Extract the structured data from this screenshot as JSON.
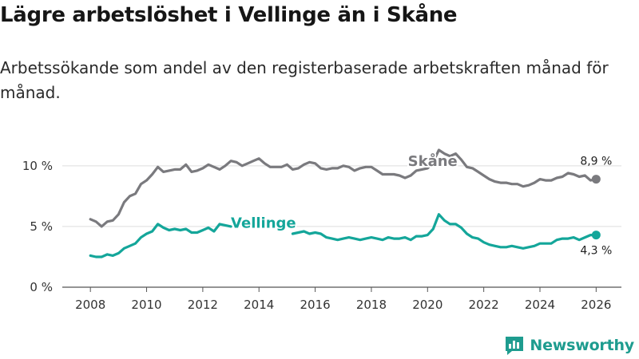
{
  "header": {
    "title": "Lägre arbetslöshet i Vellinge än i Skåne",
    "subtitle": "Arbetssökande som andel av den registerbaserade arbetskraften månad för månad."
  },
  "brand": {
    "name": "Newsworthy"
  },
  "colors": {
    "skane": "#7a7a7e",
    "vellinge": "#14a69a",
    "grid": "#dddddd",
    "axis": "#555555"
  },
  "chart_data": {
    "type": "line",
    "title": "Lägre arbetslöshet i Vellinge än i Skåne",
    "xlabel": "",
    "ylabel": "",
    "xlim": [
      2007,
      2026.9
    ],
    "ylim": [
      0,
      11.5
    ],
    "x_ticks": [
      2008,
      2010,
      2012,
      2014,
      2016,
      2018,
      2020,
      2022,
      2024,
      2026
    ],
    "x_tick_labels": [
      "2008",
      "2010",
      "2012",
      "2014",
      "2016",
      "2018",
      "2020",
      "2022",
      "2024",
      "2026"
    ],
    "y_ticks": [
      0,
      5,
      10
    ],
    "y_tick_labels": [
      "0 %",
      "5 %",
      "10 %"
    ],
    "series": [
      {
        "name": "Skåne",
        "label": "Skåne",
        "color": "#7a7a7e",
        "end_label": "8,9 %",
        "x": [
          2008.0,
          2008.2,
          2008.4,
          2008.6,
          2008.8,
          2009.0,
          2009.2,
          2009.4,
          2009.6,
          2009.8,
          2010.0,
          2010.2,
          2010.4,
          2010.6,
          2010.8,
          2011.0,
          2011.2,
          2011.4,
          2011.6,
          2011.8,
          2012.0,
          2012.2,
          2012.4,
          2012.6,
          2012.8,
          2013.0,
          2013.2,
          2013.4,
          2013.6,
          2013.8,
          2014.0,
          2014.2,
          2014.4,
          2014.6,
          2014.8,
          2015.0,
          2015.2,
          2015.4,
          2015.6,
          2015.8,
          2016.0,
          2016.2,
          2016.4,
          2016.6,
          2016.8,
          2017.0,
          2017.2,
          2017.4,
          2017.6,
          2017.8,
          2018.0,
          2018.2,
          2018.4,
          2018.6,
          2018.8,
          2019.0,
          2019.2,
          2019.4,
          2019.6,
          2019.8,
          2020.0,
          2020.2,
          2020.4,
          2020.6,
          2020.8,
          2021.0,
          2021.2,
          2021.4,
          2021.6,
          2021.8,
          2022.0,
          2022.2,
          2022.4,
          2022.6,
          2022.8,
          2023.0,
          2023.2,
          2023.4,
          2023.6,
          2023.8,
          2024.0,
          2024.2,
          2024.4,
          2024.6,
          2024.8,
          2025.0,
          2025.2,
          2025.4,
          2025.6,
          2025.8,
          2026.0
        ],
        "values": [
          5.6,
          5.4,
          5.0,
          5.4,
          5.5,
          6.0,
          7.0,
          7.5,
          7.7,
          8.5,
          8.8,
          9.3,
          9.9,
          9.5,
          9.6,
          9.7,
          9.7,
          10.1,
          9.5,
          9.6,
          9.8,
          10.1,
          9.9,
          9.7,
          10.0,
          10.4,
          10.3,
          10.0,
          10.2,
          10.4,
          10.6,
          10.2,
          9.9,
          9.9,
          9.9,
          10.1,
          9.7,
          9.8,
          10.1,
          10.3,
          10.2,
          9.8,
          9.7,
          9.8,
          9.8,
          10.0,
          9.9,
          9.6,
          9.8,
          9.9,
          9.9,
          9.6,
          9.3,
          9.3,
          9.3,
          9.2,
          9.0,
          9.2,
          9.6,
          9.7,
          9.8,
          10.3,
          11.3,
          11.0,
          10.8,
          11.0,
          10.5,
          9.9,
          9.8,
          9.5,
          9.2,
          8.9,
          8.7,
          8.6,
          8.6,
          8.5,
          8.5,
          8.3,
          8.4,
          8.6,
          8.9,
          8.8,
          8.8,
          9.0,
          9.1,
          9.4,
          9.3,
          9.1,
          9.2,
          8.8,
          8.9
        ]
      },
      {
        "name": "Vellinge",
        "label": "Vellinge",
        "color": "#14a69a",
        "end_label": "4,3 %",
        "x": [
          2008.0,
          2008.2,
          2008.4,
          2008.6,
          2008.8,
          2009.0,
          2009.2,
          2009.4,
          2009.6,
          2009.8,
          2010.0,
          2010.2,
          2010.4,
          2010.6,
          2010.8,
          2011.0,
          2011.2,
          2011.4,
          2011.6,
          2011.8,
          2012.0,
          2012.2,
          2012.4,
          2012.6,
          2012.8,
          2013.0,
          null,
          2015.2,
          2015.4,
          2015.6,
          2015.8,
          2016.0,
          2016.2,
          2016.4,
          2016.6,
          2016.8,
          2017.0,
          2017.2,
          2017.4,
          2017.6,
          2017.8,
          2018.0,
          2018.2,
          2018.4,
          2018.6,
          2018.8,
          2019.0,
          2019.2,
          2019.4,
          2019.6,
          2019.8,
          2020.0,
          2020.2,
          2020.4,
          2020.6,
          2020.8,
          2021.0,
          2021.2,
          2021.4,
          2021.6,
          2021.8,
          2022.0,
          2022.2,
          2022.4,
          2022.6,
          2022.8,
          2023.0,
          2023.2,
          2023.4,
          2023.6,
          2023.8,
          2024.0,
          2024.2,
          2024.4,
          2024.6,
          2024.8,
          2025.0,
          2025.2,
          2025.4,
          2025.6,
          2025.8,
          2026.0
        ],
        "values": [
          2.6,
          2.5,
          2.5,
          2.7,
          2.6,
          2.8,
          3.2,
          3.4,
          3.6,
          4.1,
          4.4,
          4.6,
          5.2,
          4.9,
          4.7,
          4.8,
          4.7,
          4.8,
          4.5,
          4.5,
          4.7,
          4.9,
          4.6,
          5.2,
          5.1,
          5.0,
          null,
          4.4,
          4.5,
          4.6,
          4.4,
          4.5,
          4.4,
          4.1,
          4.0,
          3.9,
          4.0,
          4.1,
          4.0,
          3.9,
          4.0,
          4.1,
          4.0,
          3.9,
          4.1,
          4.0,
          4.0,
          4.1,
          3.9,
          4.2,
          4.2,
          4.3,
          4.8,
          6.0,
          5.5,
          5.2,
          5.2,
          4.9,
          4.4,
          4.1,
          4.0,
          3.7,
          3.5,
          3.4,
          3.3,
          3.3,
          3.4,
          3.3,
          3.2,
          3.3,
          3.4,
          3.6,
          3.6,
          3.6,
          3.9,
          4.0,
          4.0,
          4.1,
          3.9,
          4.1,
          4.3,
          4.3
        ]
      }
    ]
  }
}
